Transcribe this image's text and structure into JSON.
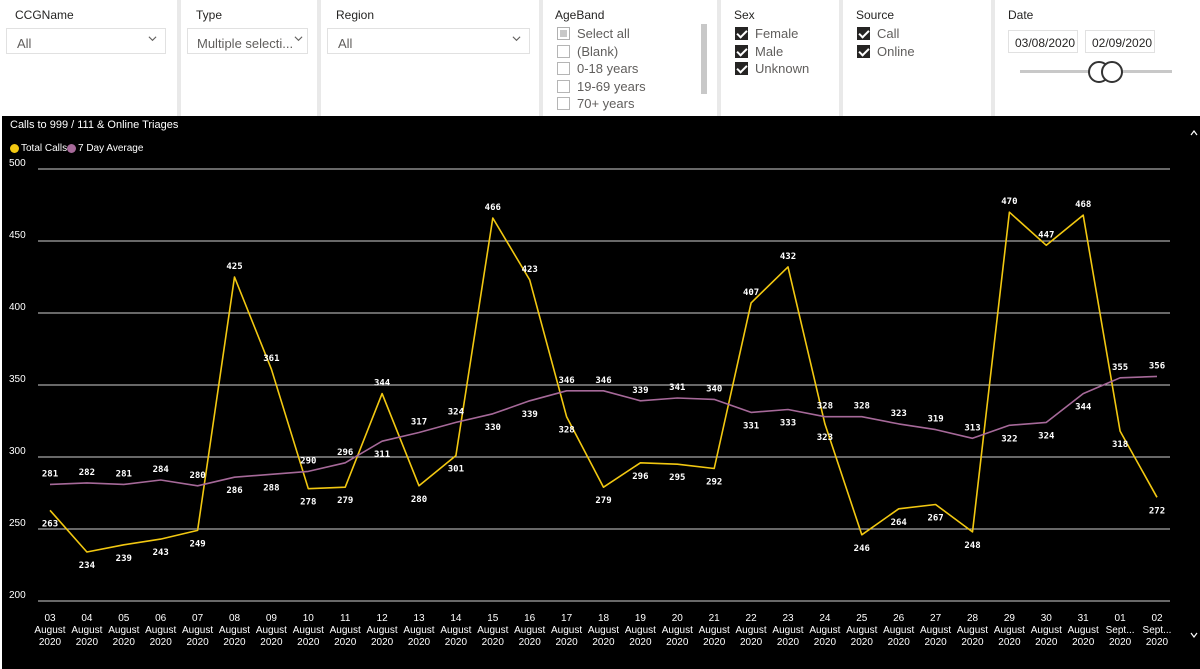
{
  "slicers": {
    "ccg": {
      "title": "CCGName",
      "value": "All"
    },
    "type": {
      "title": "Type",
      "value": "Multiple selecti..."
    },
    "region": {
      "title": "Region",
      "value": "All"
    },
    "ageband": {
      "title": "AgeBand",
      "items": [
        {
          "label": "Select all",
          "state": "partial"
        },
        {
          "label": "(Blank)",
          "state": "unchecked"
        },
        {
          "label": "0-18 years",
          "state": "unchecked"
        },
        {
          "label": "19-69 years",
          "state": "unchecked"
        },
        {
          "label": "70+ years",
          "state": "unchecked"
        }
      ]
    },
    "sex": {
      "title": "Sex",
      "items": [
        {
          "label": "Female",
          "state": "checked"
        },
        {
          "label": "Male",
          "state": "checked"
        },
        {
          "label": "Unknown",
          "state": "checked"
        }
      ]
    },
    "source": {
      "title": "Source",
      "items": [
        {
          "label": "Call",
          "state": "checked"
        },
        {
          "label": "Online",
          "state": "checked"
        }
      ]
    },
    "date": {
      "title": "Date",
      "start": "03/08/2020",
      "end": "02/09/2020"
    }
  },
  "chart": {
    "title": "Calls to 999 / 111 & Online Triages",
    "legend": [
      {
        "name": "Total Calls",
        "color": "#f2c811"
      },
      {
        "name": "7 Day Average",
        "color": "#a66999"
      }
    ]
  },
  "chart_data": {
    "type": "line",
    "title": "Calls to 999 / 111 & Online Triages",
    "ylim": [
      200,
      500
    ],
    "yticks": [
      200,
      250,
      300,
      350,
      400,
      450,
      500
    ],
    "grid": true,
    "legend_position": "top-left",
    "categories": [
      [
        "03",
        "August",
        "2020"
      ],
      [
        "04",
        "August",
        "2020"
      ],
      [
        "05",
        "August",
        "2020"
      ],
      [
        "06",
        "August",
        "2020"
      ],
      [
        "07",
        "August",
        "2020"
      ],
      [
        "08",
        "August",
        "2020"
      ],
      [
        "09",
        "August",
        "2020"
      ],
      [
        "10",
        "August",
        "2020"
      ],
      [
        "11",
        "August",
        "2020"
      ],
      [
        "12",
        "August",
        "2020"
      ],
      [
        "13",
        "August",
        "2020"
      ],
      [
        "14",
        "August",
        "2020"
      ],
      [
        "15",
        "August",
        "2020"
      ],
      [
        "16",
        "August",
        "2020"
      ],
      [
        "17",
        "August",
        "2020"
      ],
      [
        "18",
        "August",
        "2020"
      ],
      [
        "19",
        "August",
        "2020"
      ],
      [
        "20",
        "August",
        "2020"
      ],
      [
        "21",
        "August",
        "2020"
      ],
      [
        "22",
        "August",
        "2020"
      ],
      [
        "23",
        "August",
        "2020"
      ],
      [
        "24",
        "August",
        "2020"
      ],
      [
        "25",
        "August",
        "2020"
      ],
      [
        "26",
        "August",
        "2020"
      ],
      [
        "27",
        "August",
        "2020"
      ],
      [
        "28",
        "August",
        "2020"
      ],
      [
        "29",
        "August",
        "2020"
      ],
      [
        "30",
        "August",
        "2020"
      ],
      [
        "31",
        "August",
        "2020"
      ],
      [
        "01",
        "Sept...",
        "2020"
      ],
      [
        "02",
        "Sept...",
        "2020"
      ]
    ],
    "series": [
      {
        "name": "Total Calls",
        "color": "#f2c811",
        "values": [
          263,
          234,
          239,
          243,
          249,
          425,
          361,
          278,
          279,
          344,
          280,
          301,
          466,
          423,
          328,
          279,
          296,
          295,
          292,
          407,
          432,
          323,
          246,
          264,
          267,
          248,
          470,
          447,
          468,
          318,
          272
        ]
      },
      {
        "name": "7 Day Average",
        "color": "#a66999",
        "values": [
          281,
          282,
          281,
          284,
          280,
          286,
          288,
          290,
          296,
          311,
          317,
          324,
          330,
          339,
          346,
          346,
          339,
          341,
          340,
          331,
          333,
          328,
          328,
          323,
          319,
          313,
          322,
          324,
          344,
          355,
          356
        ]
      }
    ]
  }
}
